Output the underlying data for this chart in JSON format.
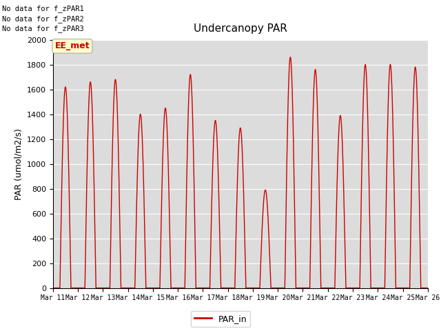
{
  "title": "Undercanopy PAR",
  "ylabel": "PAR (umol/m2/s)",
  "ylim": [
    0,
    2000
  ],
  "bg_color": "#dcdcdc",
  "line_color": "#cc0000",
  "line_width": 1.0,
  "legend_label": "PAR_in",
  "annotations": [
    "No data for f_zPAR1",
    "No data for f_zPAR2",
    "No data for f_zPAR3"
  ],
  "ee_met_label": "EE_met",
  "xtick_labels": [
    "Mar 11",
    "Mar 12",
    "Mar 13",
    "Mar 14",
    "Mar 15",
    "Mar 16",
    "Mar 17",
    "Mar 18",
    "Mar 19",
    "Mar 20",
    "Mar 21",
    "Mar 22",
    "Mar 23",
    "Mar 24",
    "Mar 25",
    "Mar 26"
  ],
  "peaks": [
    1620,
    1660,
    1680,
    1400,
    1450,
    1720,
    1350,
    1290,
    790,
    1860,
    1760,
    1390,
    1800,
    1800,
    1780
  ],
  "peak_centers": [
    0.5,
    0.5,
    0.5,
    0.5,
    0.5,
    0.5,
    0.5,
    0.5,
    0.5,
    0.5,
    0.5,
    0.5,
    0.5,
    0.5,
    0.5
  ],
  "peak_widths": [
    0.22,
    0.22,
    0.22,
    0.22,
    0.22,
    0.22,
    0.22,
    0.22,
    0.22,
    0.22,
    0.22,
    0.22,
    0.22,
    0.22,
    0.22
  ]
}
